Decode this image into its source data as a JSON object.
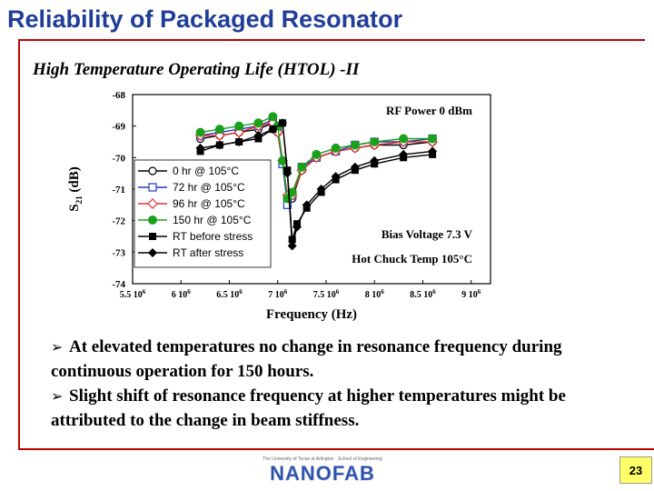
{
  "slide": {
    "title": "Reliability of Packaged Resonator",
    "subtitle": "High Temperature Operating Life (HTOL) -II",
    "bullets": [
      "At elevated temperatures no change in resonance frequency during continuous operation for 150 hours.",
      "Slight shift of resonance frequency at higher temperatures might be attributed to the change in beam stiffness."
    ],
    "logo_text": "NANOFAB",
    "logo_subtext": "The University of Texas at Arlington · School of Engineering",
    "page_number": "23",
    "colors": {
      "title": "#1f3d99",
      "rule": "#c00000",
      "page_box": "#ffff66"
    }
  },
  "chart_data": {
    "type": "line",
    "xlabel": "Frequency (Hz)",
    "ylabel": "S21 (dB)",
    "ylim": [
      -74,
      -68
    ],
    "xlim": [
      5.5,
      9.2
    ],
    "y_ticks": [
      "-68",
      "-69",
      "-70",
      "-71",
      "-72",
      "-73",
      "-74"
    ],
    "x_ticks": [
      "5.5 10^6",
      "6 10^6",
      "6.5 10^6",
      "7 10^6",
      "7.5 10^6",
      "8 10^6",
      "8.5 10^6",
      "9 10^6"
    ],
    "annotations": [
      "RF Power 0 dBm",
      "Bias Voltage 7.3 V",
      "Hot Chuck Temp 105°C"
    ],
    "legend_position": "left",
    "series": [
      {
        "name": "0 hr @ 105°C",
        "color": "#000000",
        "marker": "circle-open",
        "x": [
          6.2,
          6.4,
          6.6,
          6.8,
          6.95,
          7.0,
          7.05,
          7.1,
          7.15,
          7.25,
          7.4,
          7.6,
          7.8,
          8.0,
          8.3,
          8.6
        ],
        "y": [
          -69.4,
          -69.3,
          -69.2,
          -69.1,
          -68.9,
          -69.2,
          -70.2,
          -71.4,
          -71.3,
          -70.4,
          -70.0,
          -69.8,
          -69.7,
          -69.6,
          -69.6,
          -69.5
        ]
      },
      {
        "name": "72 hr @ 105°C",
        "color": "#1f3dbf",
        "marker": "square-open",
        "x": [
          6.2,
          6.4,
          6.6,
          6.8,
          6.95,
          7.0,
          7.05,
          7.1,
          7.15,
          7.25,
          7.4,
          7.6,
          7.8,
          8.0,
          8.3,
          8.6
        ],
        "y": [
          -69.3,
          -69.2,
          -69.1,
          -69.0,
          -68.8,
          -69.1,
          -70.2,
          -71.5,
          -71.2,
          -70.3,
          -70.0,
          -69.8,
          -69.6,
          -69.5,
          -69.5,
          -69.4
        ]
      },
      {
        "name": "96 hr @ 105°C",
        "color": "#e03030",
        "marker": "diamond-open",
        "x": [
          6.2,
          6.4,
          6.6,
          6.8,
          6.95,
          7.0,
          7.05,
          7.1,
          7.15,
          7.25,
          7.4,
          7.6,
          7.8,
          8.0,
          8.3,
          8.6
        ],
        "y": [
          -69.3,
          -69.3,
          -69.2,
          -69.0,
          -68.9,
          -69.2,
          -70.1,
          -71.2,
          -71.2,
          -70.4,
          -70.0,
          -69.8,
          -69.7,
          -69.6,
          -69.5,
          -69.5
        ]
      },
      {
        "name": "150 hr @ 105°C",
        "color": "#1aa01a",
        "marker": "circle-filled",
        "x": [
          6.2,
          6.4,
          6.6,
          6.8,
          6.95,
          7.0,
          7.05,
          7.1,
          7.15,
          7.25,
          7.4,
          7.6,
          7.8,
          8.0,
          8.3,
          8.6
        ],
        "y": [
          -69.2,
          -69.1,
          -69.0,
          -68.9,
          -68.7,
          -69.0,
          -70.1,
          -71.3,
          -71.1,
          -70.3,
          -69.9,
          -69.7,
          -69.6,
          -69.5,
          -69.4,
          -69.4
        ]
      },
      {
        "name": "RT before stress",
        "color": "#000000",
        "marker": "square-filled",
        "x": [
          6.2,
          6.4,
          6.6,
          6.8,
          6.95,
          7.05,
          7.1,
          7.15,
          7.2,
          7.3,
          7.45,
          7.6,
          7.8,
          8.0,
          8.3,
          8.6
        ],
        "y": [
          -69.8,
          -69.6,
          -69.5,
          -69.4,
          -69.1,
          -68.9,
          -70.4,
          -72.6,
          -72.1,
          -71.6,
          -71.1,
          -70.7,
          -70.4,
          -70.2,
          -70.0,
          -69.9
        ]
      },
      {
        "name": "RT after stress",
        "color": "#000000",
        "marker": "diamond-filled",
        "x": [
          6.2,
          6.4,
          6.6,
          6.8,
          6.95,
          7.05,
          7.1,
          7.15,
          7.2,
          7.3,
          7.45,
          7.6,
          7.8,
          8.0,
          8.3,
          8.6
        ],
        "y": [
          -69.7,
          -69.6,
          -69.5,
          -69.3,
          -69.1,
          -68.9,
          -70.5,
          -72.8,
          -72.2,
          -71.5,
          -71.0,
          -70.6,
          -70.3,
          -70.1,
          -69.9,
          -69.8
        ]
      }
    ]
  }
}
